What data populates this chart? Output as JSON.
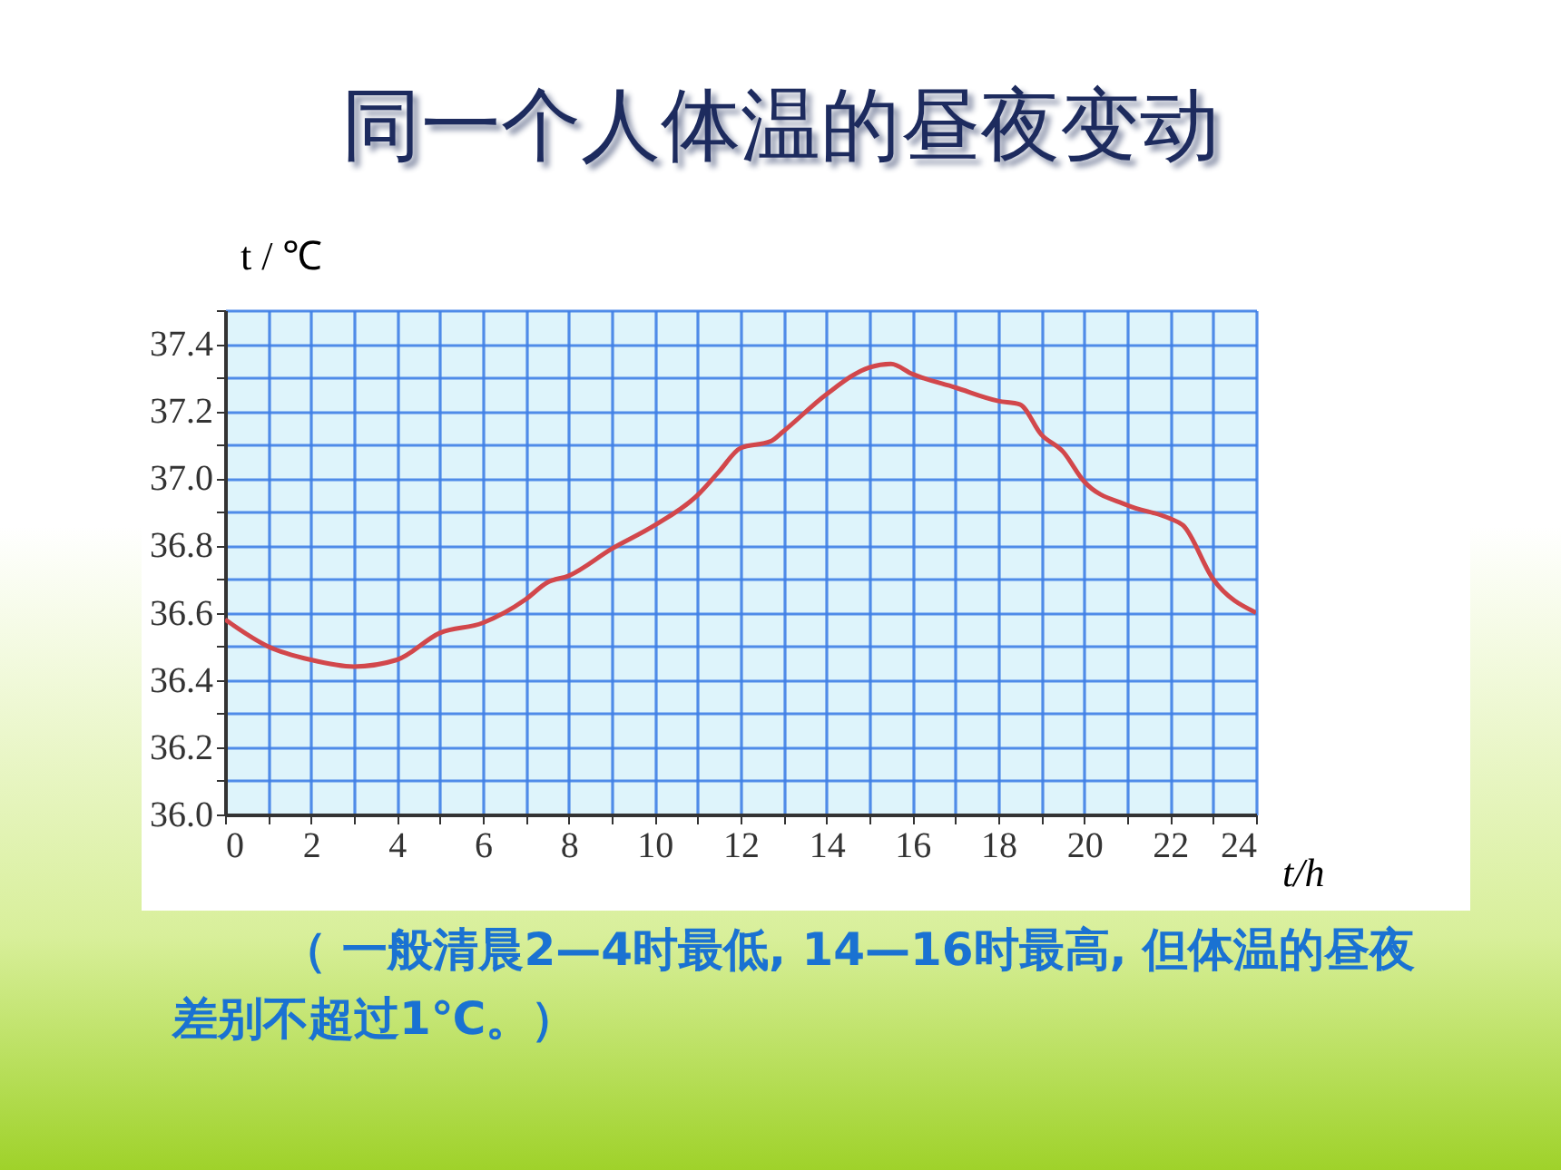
{
  "chart_data": {
    "type": "line",
    "title": "同一个人体温的昼夜变动",
    "xlabel": "t/h",
    "ylabel": "t / ℃",
    "annotations": [
      "（ 一般清晨2—4时最低, 14—16时最高, 但体温的昼夜差别不超过1℃。）"
    ],
    "x": [
      0,
      1,
      2,
      3,
      4,
      5,
      6,
      7,
      7.5,
      8,
      9,
      10,
      11,
      11.5,
      12,
      12.7,
      13,
      14,
      15,
      15.5,
      16,
      17,
      18,
      18.5,
      19,
      19.5,
      20,
      21,
      22,
      22.3,
      23,
      24
    ],
    "series": [
      {
        "color": "#d2474b",
        "values": [
          36.58,
          36.5,
          36.46,
          36.44,
          36.46,
          36.54,
          36.57,
          36.64,
          36.69,
          36.71,
          36.79,
          36.86,
          36.95,
          37.02,
          37.09,
          37.11,
          37.14,
          37.25,
          37.33,
          37.34,
          37.31,
          37.27,
          37.23,
          37.22,
          37.13,
          37.08,
          36.99,
          36.92,
          36.88,
          36.86,
          36.7,
          36.6
        ]
      }
    ],
    "xlim": [
      0,
      24
    ],
    "ylim": [
      36,
      37.5
    ],
    "xticks": [
      0,
      {
        "value": 1,
        "label": null
      },
      2,
      {
        "value": 3,
        "label": null
      },
      4,
      {
        "value": 5,
        "label": null
      },
      6,
      {
        "value": 7,
        "label": null
      },
      8,
      {
        "value": 9,
        "label": null
      },
      10,
      {
        "value": 11,
        "label": null
      },
      12,
      {
        "value": 13,
        "label": null
      },
      14,
      {
        "value": 15,
        "label": null
      },
      16,
      {
        "value": 17,
        "label": null
      },
      18,
      {
        "value": 19,
        "label": null
      },
      20,
      {
        "value": 21,
        "label": null
      },
      22,
      {
        "value": 23,
        "label": null
      },
      24
    ],
    "yticks": [
      {
        "value": 36,
        "label": "36.0"
      },
      {
        "value": 36.1,
        "label": null
      },
      {
        "value": 36.2,
        "label": "36.2"
      },
      {
        "value": 36.3,
        "label": null
      },
      {
        "value": 36.4,
        "label": "36.4"
      },
      {
        "value": 36.5,
        "label": null
      },
      {
        "value": 36.6,
        "label": "36.6"
      },
      {
        "value": 36.7,
        "label": null
      },
      {
        "value": 36.8,
        "label": "36.8"
      },
      {
        "value": 36.9,
        "label": null
      },
      {
        "value": 37,
        "label": "37.0"
      },
      {
        "value": 37.1,
        "label": null
      },
      {
        "value": 37.2,
        "label": "37.2"
      },
      {
        "value": 37.3,
        "label": null
      },
      {
        "value": 37.4,
        "label": "37.4"
      },
      {
        "value": 37.5,
        "label": null
      }
    ],
    "grid": true
  }
}
